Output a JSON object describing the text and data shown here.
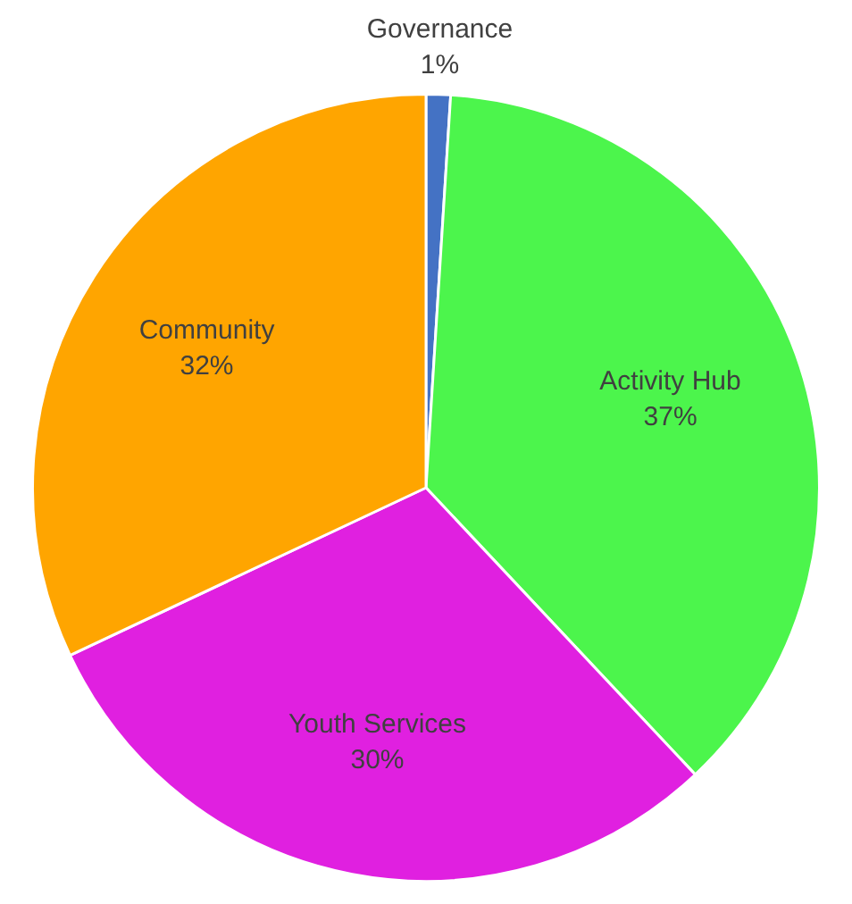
{
  "chart_data": {
    "type": "pie",
    "categories": [
      "Governance",
      "Activity Hub",
      "Youth Services",
      "Community"
    ],
    "values": [
      1,
      37,
      30,
      32
    ],
    "colors": [
      "#4472c4",
      "#4cf54c",
      "#e020e0",
      "#ffa500"
    ],
    "value_labels": [
      "1%",
      "37%",
      "30%",
      "32%"
    ],
    "legend": false
  }
}
